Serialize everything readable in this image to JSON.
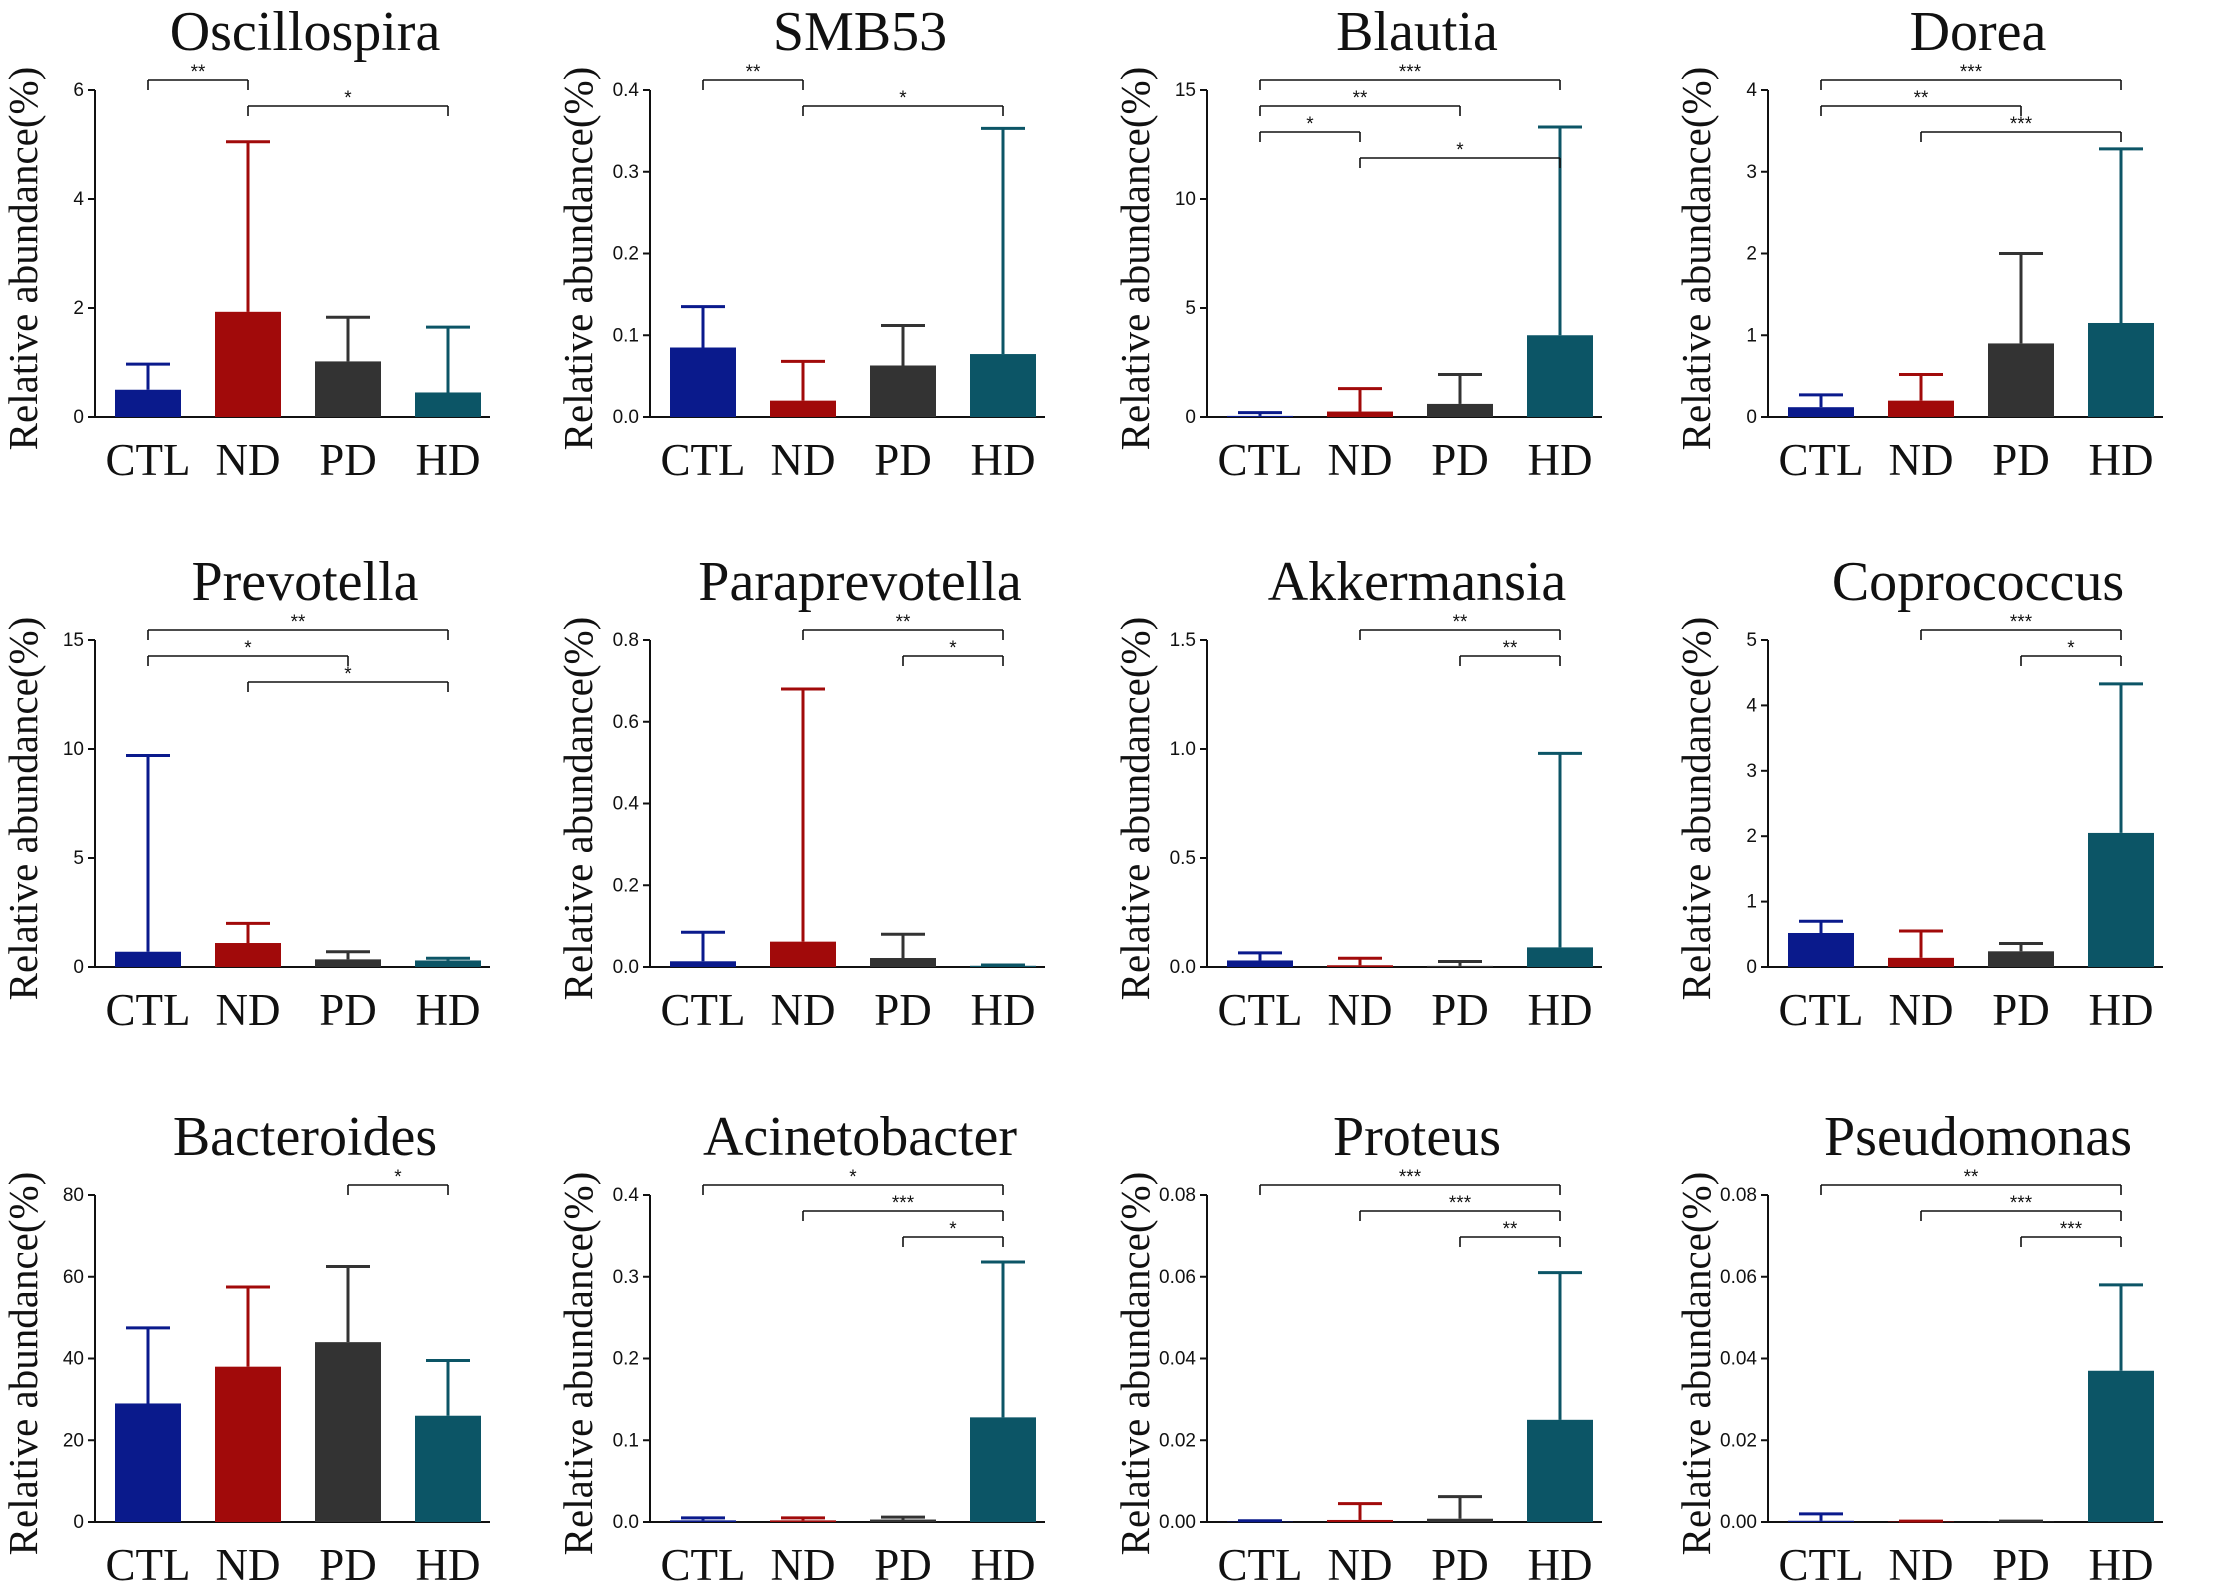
{
  "figure": {
    "xlabel": "",
    "ylabel": "Relative abundance(%)",
    "groups": [
      "CTL",
      "ND",
      "PD",
      "HD"
    ],
    "colors": {
      "CTL": "#0a1a8c",
      "ND": "#a10a0a",
      "PD": "#333333",
      "HD": "#0c5566"
    }
  },
  "chart_data": [
    {
      "type": "bar",
      "title": "Oscillospira",
      "categories": [
        "CTL",
        "ND",
        "PD",
        "HD"
      ],
      "values": [
        0.5,
        1.93,
        1.02,
        0.45
      ],
      "errors_upper": [
        0.97,
        5.05,
        1.83,
        1.65
      ],
      "ylabel": "Relative abundance(%)",
      "ylim": [
        0,
        6
      ],
      "yticks": [
        "0",
        "2",
        "4",
        "6"
      ],
      "significance": [
        {
          "from": "CTL",
          "to": "ND",
          "label": "**"
        },
        {
          "from": "ND",
          "to": "HD",
          "label": "*"
        }
      ]
    },
    {
      "type": "bar",
      "title": "SMB53",
      "categories": [
        "CTL",
        "ND",
        "PD",
        "HD"
      ],
      "values": [
        0.085,
        0.02,
        0.063,
        0.077
      ],
      "errors_upper": [
        0.135,
        0.068,
        0.112,
        0.353
      ],
      "ylabel": "Relative abundance(%)",
      "ylim": [
        0,
        0.4
      ],
      "yticks": [
        "0.0",
        "0.1",
        "0.2",
        "0.3",
        "0.4"
      ],
      "significance": [
        {
          "from": "CTL",
          "to": "ND",
          "label": "**"
        },
        {
          "from": "ND",
          "to": "HD",
          "label": "*"
        }
      ]
    },
    {
      "type": "bar",
      "title": "Blautia",
      "categories": [
        "CTL",
        "ND",
        "PD",
        "HD"
      ],
      "values": [
        0.05,
        0.25,
        0.6,
        3.75
      ],
      "errors_upper": [
        0.2,
        1.3,
        1.95,
        13.3
      ],
      "ylabel": "Relative abundance(%)",
      "ylim": [
        0,
        15
      ],
      "yticks": [
        "0",
        "5",
        "10",
        "15"
      ],
      "significance": [
        {
          "from": "CTL",
          "to": "HD",
          "label": "***"
        },
        {
          "from": "CTL",
          "to": "PD",
          "label": "**"
        },
        {
          "from": "CTL",
          "to": "ND",
          "label": "*"
        },
        {
          "from": "ND",
          "to": "HD",
          "label": "*"
        }
      ]
    },
    {
      "type": "bar",
      "title": "Dorea",
      "categories": [
        "CTL",
        "ND",
        "PD",
        "HD"
      ],
      "values": [
        0.12,
        0.2,
        0.9,
        1.15
      ],
      "errors_upper": [
        0.27,
        0.52,
        2.0,
        3.28
      ],
      "ylabel": "Relative abundance(%)",
      "ylim": [
        0,
        4
      ],
      "yticks": [
        "0",
        "1",
        "2",
        "3",
        "4"
      ],
      "significance": [
        {
          "from": "CTL",
          "to": "HD",
          "label": "***"
        },
        {
          "from": "CTL",
          "to": "PD",
          "label": "**"
        },
        {
          "from": "ND",
          "to": "HD",
          "label": "***"
        }
      ]
    },
    {
      "type": "bar",
      "title": "Prevotella",
      "categories": [
        "CTL",
        "ND",
        "PD",
        "HD"
      ],
      "values": [
        0.7,
        1.1,
        0.35,
        0.3
      ],
      "errors_upper": [
        9.7,
        2.0,
        0.7,
        0.4
      ],
      "ylabel": "Relative abundance(%)",
      "ylim": [
        0,
        15
      ],
      "yticks": [
        "0",
        "5",
        "10",
        "15"
      ],
      "significance": [
        {
          "from": "CTL",
          "to": "HD",
          "label": "**"
        },
        {
          "from": "CTL",
          "to": "PD",
          "label": "*"
        },
        {
          "from": "ND",
          "to": "HD",
          "label": "*"
        }
      ]
    },
    {
      "type": "bar",
      "title": "Paraprevotella",
      "categories": [
        "CTL",
        "ND",
        "PD",
        "HD"
      ],
      "values": [
        0.014,
        0.062,
        0.022,
        0.003
      ],
      "errors_upper": [
        0.085,
        0.68,
        0.08,
        0.005
      ],
      "ylabel": "Relative abundance(%)",
      "ylim": [
        0,
        0.8
      ],
      "yticks": [
        "0.0",
        "0.2",
        "0.4",
        "0.6",
        "0.8"
      ],
      "significance": [
        {
          "from": "ND",
          "to": "HD",
          "label": "**"
        },
        {
          "from": "PD",
          "to": "HD",
          "label": "*"
        }
      ]
    },
    {
      "type": "bar",
      "title": "Akkermansia",
      "categories": [
        "CTL",
        "ND",
        "PD",
        "HD"
      ],
      "values": [
        0.03,
        0.008,
        0.005,
        0.09
      ],
      "errors_upper": [
        0.065,
        0.04,
        0.025,
        0.98
      ],
      "ylabel": "Relative abundance(%)",
      "ylim": [
        0,
        1.5
      ],
      "yticks": [
        "0.0",
        "0.5",
        "1.0",
        "1.5"
      ],
      "significance": [
        {
          "from": "ND",
          "to": "HD",
          "label": "**"
        },
        {
          "from": "PD",
          "to": "HD",
          "label": "**"
        }
      ]
    },
    {
      "type": "bar",
      "title": "Coprococcus",
      "categories": [
        "CTL",
        "ND",
        "PD",
        "HD"
      ],
      "values": [
        0.52,
        0.14,
        0.24,
        2.05
      ],
      "errors_upper": [
        0.7,
        0.55,
        0.36,
        4.33
      ],
      "ylabel": "Relative abundance(%)",
      "ylim": [
        0,
        5
      ],
      "yticks": [
        "0",
        "1",
        "2",
        "3",
        "4",
        "5"
      ],
      "significance": [
        {
          "from": "ND",
          "to": "HD",
          "label": "***"
        },
        {
          "from": "PD",
          "to": "HD",
          "label": "*"
        }
      ]
    },
    {
      "type": "bar",
      "title": "Bacteroides",
      "categories": [
        "CTL",
        "ND",
        "PD",
        "HD"
      ],
      "values": [
        29,
        38,
        44,
        26
      ],
      "errors_upper": [
        47.5,
        57.5,
        62.5,
        39.5
      ],
      "ylabel": "Relative abundance(%)",
      "ylim": [
        0,
        80
      ],
      "yticks": [
        "0",
        "20",
        "40",
        "60",
        "80"
      ],
      "significance": [
        {
          "from": "PD",
          "to": "HD",
          "label": "*"
        }
      ]
    },
    {
      "type": "bar",
      "title": "Acinetobacter",
      "categories": [
        "CTL",
        "ND",
        "PD",
        "HD"
      ],
      "values": [
        0.002,
        0.002,
        0.003,
        0.128
      ],
      "errors_upper": [
        0.005,
        0.005,
        0.006,
        0.318
      ],
      "ylabel": "Relative abundance(%)",
      "ylim": [
        0,
        0.4
      ],
      "yticks": [
        "0.0",
        "0.1",
        "0.2",
        "0.3",
        "0.4"
      ],
      "significance": [
        {
          "from": "CTL",
          "to": "HD",
          "label": "*"
        },
        {
          "from": "ND",
          "to": "HD",
          "label": "***"
        },
        {
          "from": "PD",
          "to": "HD",
          "label": "*"
        }
      ]
    },
    {
      "type": "bar",
      "title": "Proteus",
      "categories": [
        "CTL",
        "ND",
        "PD",
        "HD"
      ],
      "values": [
        0.0001,
        0.0005,
        0.0008,
        0.025
      ],
      "errors_upper": [
        0.0003,
        0.0045,
        0.0062,
        0.061
      ],
      "ylabel": "Relative abundance(%)",
      "ylim": [
        0,
        0.08
      ],
      "yticks": [
        "0.00",
        "0.02",
        "0.04",
        "0.06",
        "0.08"
      ],
      "significance": [
        {
          "from": "CTL",
          "to": "HD",
          "label": "***"
        },
        {
          "from": "ND",
          "to": "HD",
          "label": "***"
        },
        {
          "from": "PD",
          "to": "HD",
          "label": "**"
        }
      ]
    },
    {
      "type": "bar",
      "title": "Pseudomonas",
      "categories": [
        "CTL",
        "ND",
        "PD",
        "HD"
      ],
      "values": [
        0.0003,
        0.0001,
        0.0001,
        0.037
      ],
      "errors_upper": [
        0.002,
        0.0002,
        0.0002,
        0.058
      ],
      "ylabel": "Relative abundance(%)",
      "ylim": [
        0,
        0.08
      ],
      "yticks": [
        "0.00",
        "0.02",
        "0.04",
        "0.06",
        "0.08"
      ],
      "significance": [
        {
          "from": "CTL",
          "to": "HD",
          "label": "**"
        },
        {
          "from": "ND",
          "to": "HD",
          "label": "***"
        },
        {
          "from": "PD",
          "to": "HD",
          "label": "***"
        }
      ]
    }
  ]
}
